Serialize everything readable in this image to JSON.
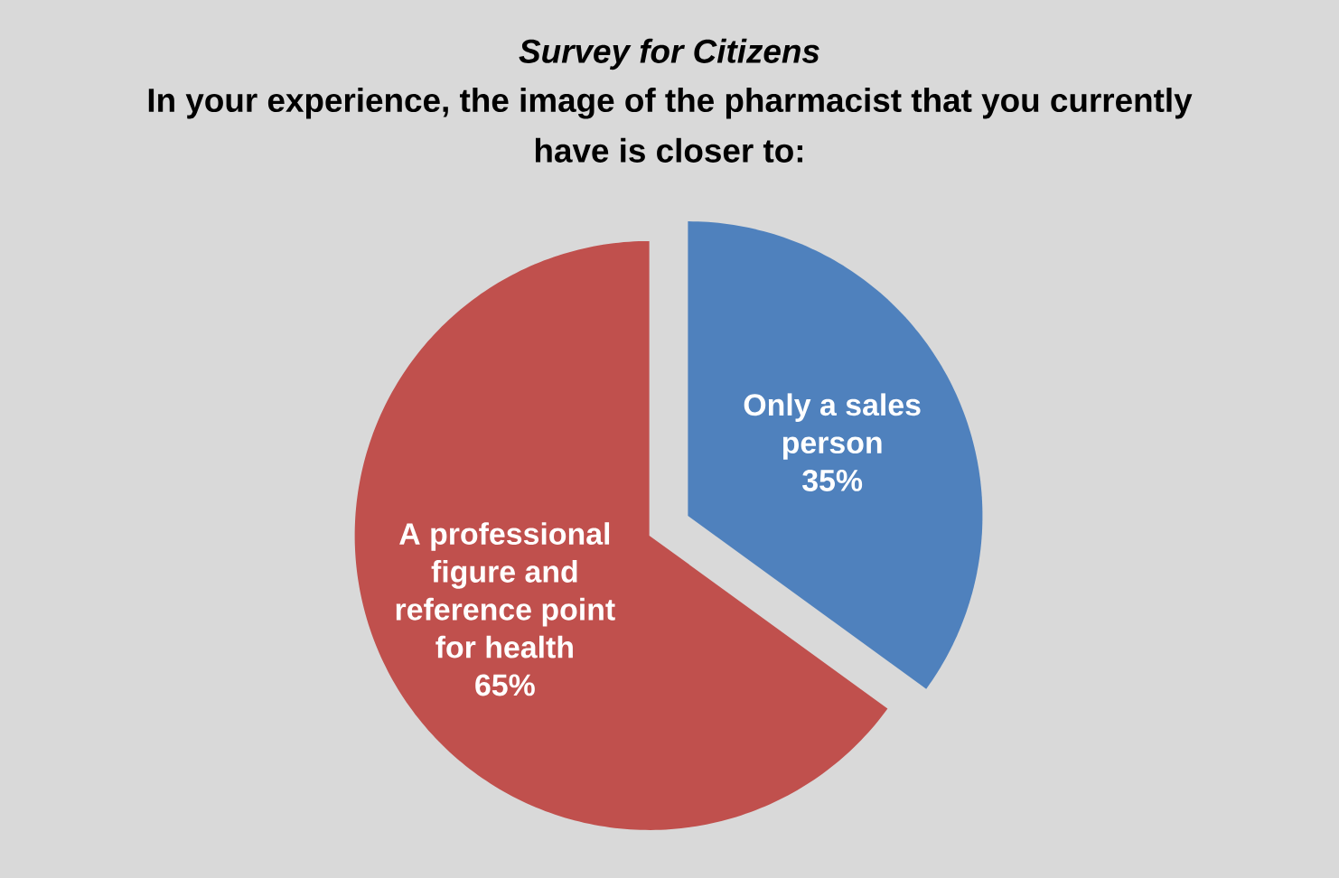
{
  "chart_data": {
    "type": "pie",
    "title": "Survey for Citizens",
    "subtitle": "In your experience, the image of the pharmacist that you currently have is closer to:",
    "categories": [
      "Only a sales person",
      "A professional figure and reference point for health"
    ],
    "values": [
      35,
      65
    ],
    "colors": [
      "#4f81bd",
      "#c0504d"
    ],
    "value_labels": [
      "35%",
      "65%"
    ]
  }
}
